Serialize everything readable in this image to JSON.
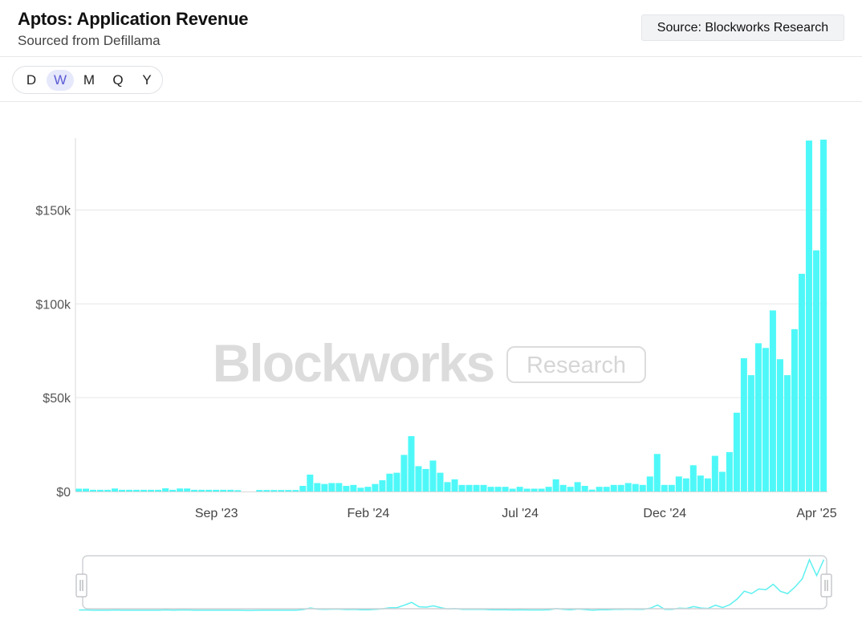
{
  "header": {
    "title": "Aptos: Application Revenue",
    "subtitle": "Sourced from Defillama",
    "source_label": "Source: Blockworks Research"
  },
  "periods": {
    "options": [
      "D",
      "W",
      "M",
      "Q",
      "Y"
    ],
    "selected": "W"
  },
  "watermark": {
    "brand": "Blockworks",
    "tag": "Research"
  },
  "colors": {
    "bar": "#4ff8f8",
    "line": "#5ef0f0",
    "grid": "#e6e6e6",
    "axis_text": "#555555",
    "watermark": "#dcdcdc",
    "period_active_bg": "#e6e8fb",
    "period_active_text": "#5b5bd6"
  },
  "chart_data": {
    "type": "bar",
    "interval": "weekly",
    "title": "Aptos: Application Revenue",
    "ylim": [
      0,
      190000
    ],
    "yticks": [
      0,
      50000,
      100000,
      150000
    ],
    "ytick_labels": [
      "$0",
      "$50k",
      "$100k",
      "$150k"
    ],
    "grid": true,
    "legend": "none",
    "xticks": [
      {
        "label": "Sep '23",
        "index": 19
      },
      {
        "label": "Feb '24",
        "index": 40
      },
      {
        "label": "Jul '24",
        "index": 61
      },
      {
        "label": "Dec '24",
        "index": 81
      },
      {
        "label": "Apr '25",
        "index": 102
      }
    ],
    "values": [
      1500,
      1500,
      900,
      900,
      900,
      1600,
      900,
      900,
      900,
      900,
      900,
      900,
      1700,
      900,
      1600,
      1600,
      900,
      900,
      900,
      900,
      900,
      900,
      700,
      0,
      0,
      800,
      800,
      800,
      800,
      800,
      800,
      3000,
      9000,
      4500,
      4000,
      4500,
      4500,
      3000,
      3500,
      2000,
      2500,
      4000,
      6000,
      9500,
      10000,
      19500,
      29500,
      13500,
      12000,
      16500,
      10000,
      5000,
      6500,
      3500,
      3500,
      3500,
      3500,
      2500,
      2500,
      2500,
      1500,
      2500,
      1500,
      1500,
      1500,
      2500,
      6500,
      3500,
      2500,
      5000,
      3000,
      1000,
      2500,
      2500,
      3500,
      3500,
      4500,
      4000,
      3500,
      8000,
      20000,
      3500,
      3500,
      8000,
      7000,
      14000,
      8500,
      7000,
      19000,
      10500,
      21000,
      42000,
      71000,
      62000,
      79000,
      76500,
      96500,
      70500,
      62000,
      86500,
      116000,
      187000,
      128500,
      187500
    ]
  }
}
